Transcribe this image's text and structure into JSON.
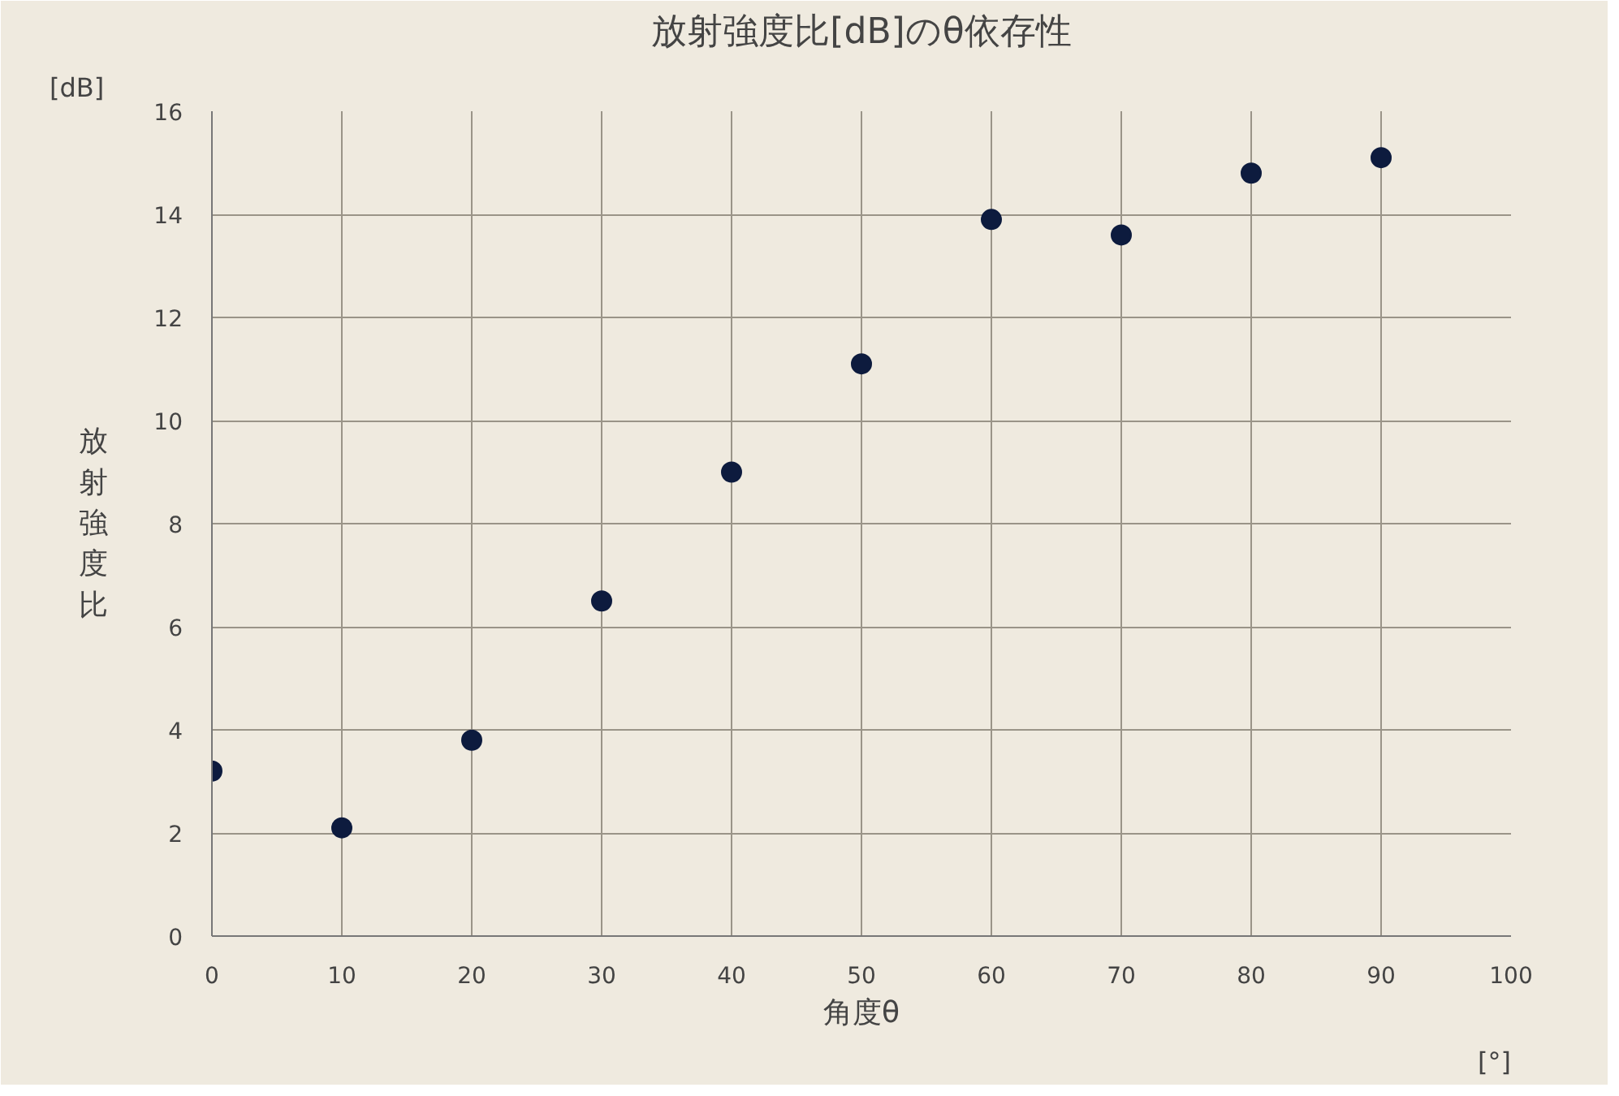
{
  "chart_data": {
    "type": "scatter",
    "title": "放射強度比[dB]のθ依存性",
    "xlabel": "角度θ",
    "ylabel": "放射強度比",
    "annotations": [
      "[dB]",
      "[°]"
    ],
    "x": [
      0,
      10,
      20,
      30,
      40,
      50,
      60,
      70,
      80,
      90
    ],
    "series": [
      {
        "color": "#0d1b3e",
        "values": [
          3.2,
          2.1,
          3.8,
          6.5,
          9.0,
          11.1,
          13.9,
          13.6,
          14.8,
          15.1
        ]
      }
    ],
    "xlim": [
      0,
      100
    ],
    "xticks": [
      0,
      10,
      20,
      30,
      40,
      50,
      60,
      70,
      80,
      90,
      100
    ],
    "ylim": [
      0,
      16
    ],
    "yticks": [
      0,
      2,
      4,
      6,
      8,
      10,
      12,
      14,
      16
    ],
    "grid": true,
    "marker": "circle"
  }
}
